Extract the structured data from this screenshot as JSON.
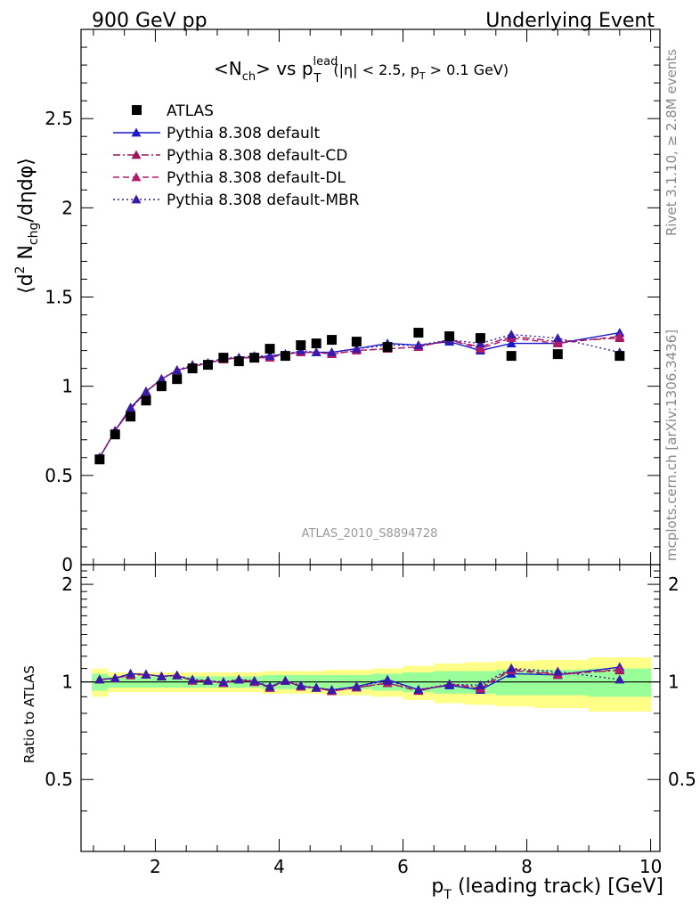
{
  "header": {
    "left": "900 GeV pp",
    "right": "Underlying Event"
  },
  "side_labels": {
    "rivet": "Rivet 3.1.10, ≥ 2.8M events",
    "mcplots": "mcplots.cern.ch [arXiv:1306.3436]"
  },
  "title": {
    "main": "<N",
    "main_sub": "ch",
    "vs": "> vs p",
    "p_sup": "lead",
    "p_sub": "T",
    "cond_a": "(|η| < 2.5, p",
    "cond_sub": "T",
    "cond_b": " > 0.1 GeV)"
  },
  "watermark": "ATLAS_2010_S8894728",
  "ylabel_top": {
    "a": "⟨d",
    "sup2": "2",
    "b": " N",
    "sub": "chg",
    "c": "/dηdφ⟩"
  },
  "ylabel_bottom": "Ratio to ATLAS",
  "xlabel": {
    "p": "p",
    "sub": "T",
    "rest": " (leading track) [GeV]"
  },
  "legend": [
    {
      "label": "ATLAS",
      "marker": "square",
      "line": "none",
      "color": "#000000"
    },
    {
      "label": "Pythia 8.308 default",
      "marker": "triangle",
      "line": "solid",
      "color": "#1a1acc"
    },
    {
      "label": "Pythia 8.308 default-CD",
      "marker": "triangle",
      "line": "dashdot",
      "color": "#a0165a"
    },
    {
      "label": "Pythia 8.308 default-DL",
      "marker": "triangle",
      "line": "dashed",
      "color": "#b01a6a"
    },
    {
      "label": "Pythia 8.308 default-MBR",
      "marker": "triangle",
      "line": "dotted",
      "color": "#3a1aa8"
    }
  ],
  "chart_data": {
    "type": "scatter",
    "xlim": [
      0.8,
      10.15
    ],
    "ylim_top": [
      0,
      3.0
    ],
    "ylim_ratio": [
      0.3,
      2.3
    ],
    "xticks": [
      2,
      4,
      6,
      8,
      10
    ],
    "yticks_top": [
      0,
      0.5,
      1,
      1.5,
      2,
      2.5
    ],
    "yticks_ratio": [
      0.5,
      1,
      2
    ],
    "x": [
      1.1,
      1.35,
      1.6,
      1.85,
      2.1,
      2.35,
      2.6,
      2.85,
      3.1,
      3.35,
      3.6,
      3.85,
      4.1,
      4.35,
      4.6,
      4.85,
      5.25,
      5.75,
      6.25,
      6.75,
      7.25,
      7.75,
      8.5,
      9.5
    ],
    "atlas": [
      0.59,
      0.73,
      0.83,
      0.92,
      1.0,
      1.04,
      1.1,
      1.12,
      1.16,
      1.14,
      1.16,
      1.21,
      1.17,
      1.23,
      1.24,
      1.26,
      1.25,
      1.22,
      1.3,
      1.28,
      1.27,
      1.17,
      1.18,
      1.17
    ],
    "atlas_band_inner": [
      0.06,
      0.04,
      0.04,
      0.04,
      0.04,
      0.04,
      0.04,
      0.04,
      0.04,
      0.04,
      0.04,
      0.05,
      0.05,
      0.05,
      0.05,
      0.05,
      0.05,
      0.06,
      0.07,
      0.08,
      0.08,
      0.09,
      0.09,
      0.1
    ],
    "atlas_band_outer": [
      0.1,
      0.07,
      0.07,
      0.07,
      0.07,
      0.07,
      0.07,
      0.07,
      0.07,
      0.07,
      0.07,
      0.08,
      0.08,
      0.08,
      0.08,
      0.09,
      0.09,
      0.1,
      0.12,
      0.14,
      0.15,
      0.16,
      0.17,
      0.19
    ],
    "series": [
      {
        "name": "Pythia 8.308 default",
        "values": [
          0.6,
          0.75,
          0.88,
          0.97,
          1.04,
          1.09,
          1.11,
          1.13,
          1.15,
          1.16,
          1.16,
          1.17,
          1.18,
          1.19,
          1.19,
          1.19,
          1.21,
          1.24,
          1.23,
          1.25,
          1.2,
          1.24,
          1.24,
          1.3
        ]
      },
      {
        "name": "Pythia 8.308 default-CD",
        "values": [
          0.6,
          0.75,
          0.87,
          0.97,
          1.04,
          1.09,
          1.11,
          1.13,
          1.15,
          1.16,
          1.16,
          1.16,
          1.18,
          1.19,
          1.19,
          1.18,
          1.2,
          1.21,
          1.22,
          1.26,
          1.22,
          1.28,
          1.25,
          1.27
        ]
      },
      {
        "name": "Pythia 8.308 default-DL",
        "values": [
          0.6,
          0.75,
          0.87,
          0.97,
          1.04,
          1.09,
          1.11,
          1.13,
          1.15,
          1.16,
          1.16,
          1.16,
          1.18,
          1.19,
          1.19,
          1.18,
          1.2,
          1.21,
          1.22,
          1.26,
          1.21,
          1.27,
          1.24,
          1.28
        ]
      },
      {
        "name": "Pythia 8.308 default-MBR",
        "values": [
          0.6,
          0.75,
          0.88,
          0.97,
          1.04,
          1.09,
          1.12,
          1.13,
          1.16,
          1.16,
          1.17,
          1.17,
          1.18,
          1.2,
          1.19,
          1.19,
          1.21,
          1.23,
          1.23,
          1.26,
          1.24,
          1.29,
          1.27,
          1.19
        ]
      }
    ]
  }
}
